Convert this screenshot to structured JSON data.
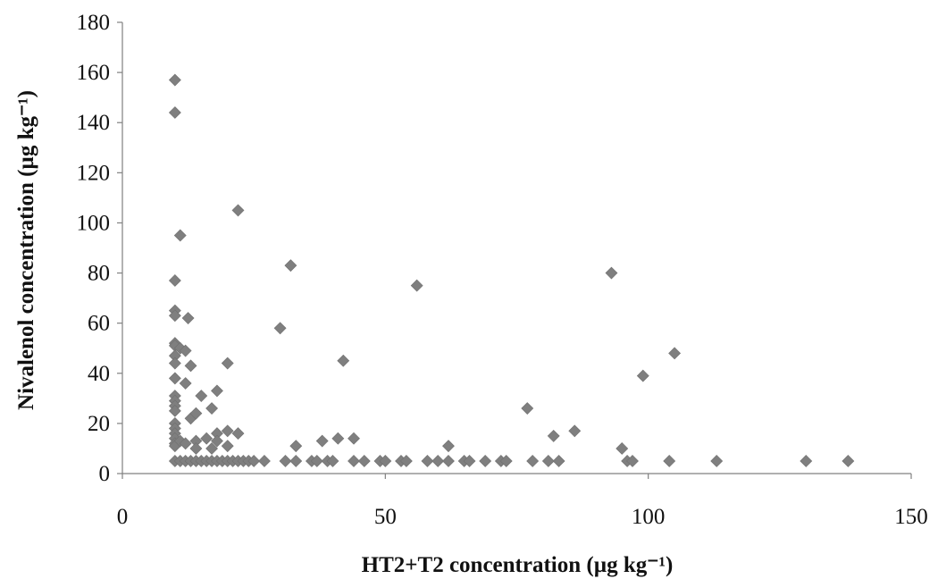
{
  "chart_data": {
    "type": "scatter",
    "title": "",
    "xlabel": "HT2+T2 concentration (µg kg⁻¹)",
    "ylabel": "Nivalenol concentration (µg kg⁻¹)",
    "xlim": [
      0,
      150
    ],
    "ylim": [
      0,
      180
    ],
    "x_ticks": [
      "0",
      "50",
      "100",
      "150"
    ],
    "y_ticks": [
      "0",
      "20",
      "40",
      "60",
      "80",
      "100",
      "120",
      "140",
      "160",
      "180"
    ],
    "grid": false,
    "legend": "none",
    "marker": "diamond",
    "marker_color": "#7f7f7f",
    "series": [
      {
        "points": [
          [
            10,
            157
          ],
          [
            10,
            144
          ],
          [
            11,
            95
          ],
          [
            10,
            77
          ],
          [
            10,
            65
          ],
          [
            10,
            63
          ],
          [
            12.5,
            62
          ],
          [
            10,
            52
          ],
          [
            10,
            51
          ],
          [
            11,
            50
          ],
          [
            12,
            49
          ],
          [
            10,
            47
          ],
          [
            10,
            44
          ],
          [
            13,
            43
          ],
          [
            10,
            38
          ],
          [
            12,
            36
          ],
          [
            10,
            31
          ],
          [
            10,
            29
          ],
          [
            10,
            27
          ],
          [
            10,
            25
          ],
          [
            13,
            22
          ],
          [
            14,
            24
          ],
          [
            10,
            20
          ],
          [
            10,
            18
          ],
          [
            10,
            16
          ],
          [
            10,
            14
          ],
          [
            10,
            12
          ],
          [
            10,
            11
          ],
          [
            11,
            13
          ],
          [
            12,
            12
          ],
          [
            15,
            31
          ],
          [
            17,
            26
          ],
          [
            18,
            33
          ],
          [
            20,
            44
          ],
          [
            22,
            105
          ],
          [
            14,
            13
          ],
          [
            14,
            10
          ],
          [
            16,
            14
          ],
          [
            17,
            10
          ],
          [
            18,
            16
          ],
          [
            18,
            13
          ],
          [
            20,
            17
          ],
          [
            20,
            11
          ],
          [
            22,
            16
          ],
          [
            10,
            5
          ],
          [
            11,
            5
          ],
          [
            12,
            5
          ],
          [
            13,
            5
          ],
          [
            14,
            5
          ],
          [
            15,
            5
          ],
          [
            16,
            5
          ],
          [
            17,
            5
          ],
          [
            18,
            5
          ],
          [
            19,
            5
          ],
          [
            20,
            5
          ],
          [
            21,
            5
          ],
          [
            22,
            5
          ],
          [
            23,
            5
          ],
          [
            24,
            5
          ],
          [
            25,
            5
          ],
          [
            27,
            5
          ],
          [
            30,
            58
          ],
          [
            32,
            83
          ],
          [
            31,
            5
          ],
          [
            33,
            5
          ],
          [
            33,
            11
          ],
          [
            36,
            5
          ],
          [
            37,
            5
          ],
          [
            39,
            5
          ],
          [
            40,
            5
          ],
          [
            38,
            13
          ],
          [
            41,
            14
          ],
          [
            42,
            45
          ],
          [
            44,
            14
          ],
          [
            44,
            5
          ],
          [
            46,
            5
          ],
          [
            49,
            5
          ],
          [
            50,
            5
          ],
          [
            53,
            5
          ],
          [
            54,
            5
          ],
          [
            56,
            75
          ],
          [
            58,
            5
          ],
          [
            60,
            5
          ],
          [
            62,
            5
          ],
          [
            62,
            11
          ],
          [
            65,
            5
          ],
          [
            66,
            5
          ],
          [
            69,
            5
          ],
          [
            72,
            5
          ],
          [
            73,
            5
          ],
          [
            77,
            26
          ],
          [
            78,
            5
          ],
          [
            81,
            5
          ],
          [
            82,
            15
          ],
          [
            83,
            5
          ],
          [
            86,
            17
          ],
          [
            93,
            80
          ],
          [
            95,
            10
          ],
          [
            96,
            5
          ],
          [
            97,
            5
          ],
          [
            99,
            39
          ],
          [
            104,
            5
          ],
          [
            105,
            48
          ],
          [
            113,
            5
          ],
          [
            130,
            5
          ],
          [
            138,
            5
          ]
        ]
      }
    ]
  }
}
